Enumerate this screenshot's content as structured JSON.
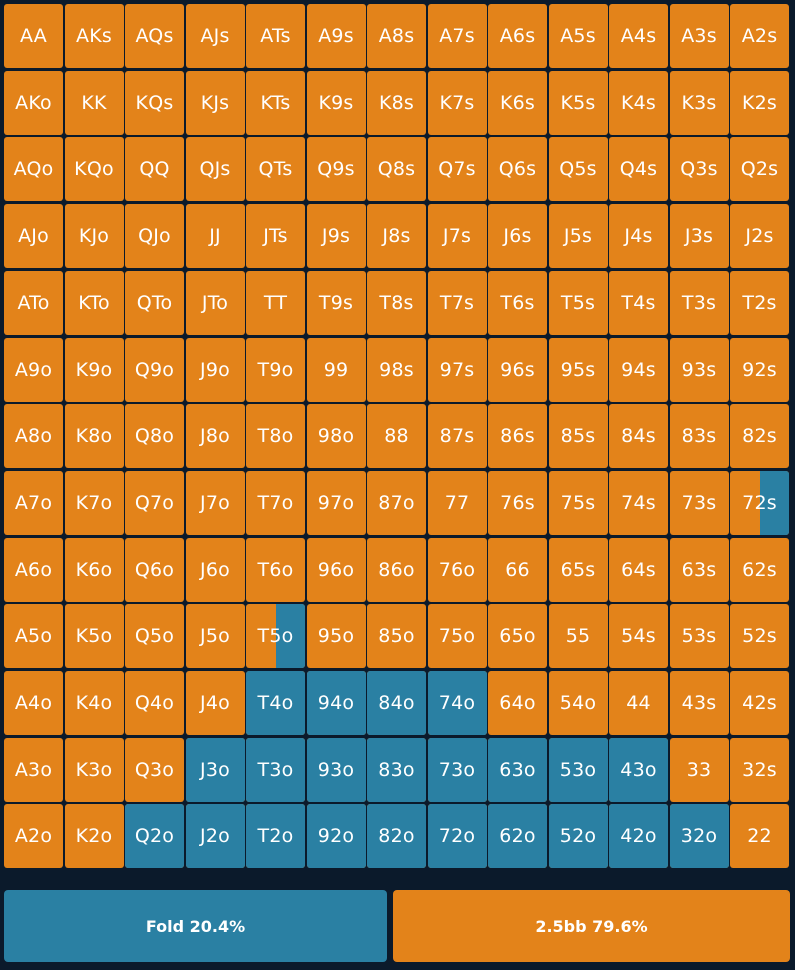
{
  "colors": {
    "background": "#0b1a2b",
    "fold": "#2a80a3",
    "raise": "#e3831a",
    "text": "#ffffff"
  },
  "grid": {
    "ranks": [
      "A",
      "K",
      "Q",
      "J",
      "T",
      "9",
      "8",
      "7",
      "6",
      "5",
      "4",
      "3",
      "2"
    ],
    "rows": [
      [
        "AA",
        "AKs",
        "AQs",
        "AJs",
        "ATs",
        "A9s",
        "A8s",
        "A7s",
        "A6s",
        "A5s",
        "A4s",
        "A3s",
        "A2s"
      ],
      [
        "AKo",
        "KK",
        "KQs",
        "KJs",
        "KTs",
        "K9s",
        "K8s",
        "K7s",
        "K6s",
        "K5s",
        "K4s",
        "K3s",
        "K2s"
      ],
      [
        "AQo",
        "KQo",
        "QQ",
        "QJs",
        "QTs",
        "Q9s",
        "Q8s",
        "Q7s",
        "Q6s",
        "Q5s",
        "Q4s",
        "Q3s",
        "Q2s"
      ],
      [
        "AJo",
        "KJo",
        "QJo",
        "JJ",
        "JTs",
        "J9s",
        "J8s",
        "J7s",
        "J6s",
        "J5s",
        "J4s",
        "J3s",
        "J2s"
      ],
      [
        "ATo",
        "KTo",
        "QTo",
        "JTo",
        "TT",
        "T9s",
        "T8s",
        "T7s",
        "T6s",
        "T5s",
        "T4s",
        "T3s",
        "T2s"
      ],
      [
        "A9o",
        "K9o",
        "Q9o",
        "J9o",
        "T9o",
        "99",
        "98s",
        "97s",
        "96s",
        "95s",
        "94s",
        "93s",
        "92s"
      ],
      [
        "A8o",
        "K8o",
        "Q8o",
        "J8o",
        "T8o",
        "98o",
        "88",
        "87s",
        "86s",
        "85s",
        "84s",
        "83s",
        "82s"
      ],
      [
        "A7o",
        "K7o",
        "Q7o",
        "J7o",
        "T7o",
        "97o",
        "87o",
        "77",
        "76s",
        "75s",
        "74s",
        "73s",
        "72s"
      ],
      [
        "A6o",
        "K6o",
        "Q6o",
        "J6o",
        "T6o",
        "96o",
        "86o",
        "76o",
        "66",
        "65s",
        "64s",
        "63s",
        "62s"
      ],
      [
        "A5o",
        "K5o",
        "Q5o",
        "J5o",
        "T5o",
        "95o",
        "85o",
        "75o",
        "65o",
        "55",
        "54s",
        "53s",
        "52s"
      ],
      [
        "A4o",
        "K4o",
        "Q4o",
        "J4o",
        "T4o",
        "94o",
        "84o",
        "74o",
        "64o",
        "54o",
        "44",
        "43s",
        "42s"
      ],
      [
        "A3o",
        "K3o",
        "Q3o",
        "J3o",
        "T3o",
        "93o",
        "83o",
        "73o",
        "63o",
        "53o",
        "43o",
        "33",
        "32s"
      ],
      [
        "A2o",
        "K2o",
        "Q2o",
        "J2o",
        "T2o",
        "92o",
        "82o",
        "72o",
        "62o",
        "52o",
        "42o",
        "32o",
        "22"
      ]
    ],
    "fold_fraction": [
      [
        0,
        0,
        0,
        0,
        0,
        0,
        0,
        0,
        0,
        0,
        0,
        0,
        0
      ],
      [
        0,
        0,
        0,
        0,
        0,
        0,
        0,
        0,
        0,
        0,
        0,
        0,
        0
      ],
      [
        0,
        0,
        0,
        0,
        0,
        0,
        0,
        0,
        0,
        0,
        0,
        0,
        0
      ],
      [
        0,
        0,
        0,
        0,
        0,
        0,
        0,
        0,
        0,
        0,
        0,
        0,
        0
      ],
      [
        0,
        0,
        0,
        0,
        0,
        0,
        0,
        0,
        0,
        0,
        0,
        0,
        0
      ],
      [
        0,
        0,
        0,
        0,
        0,
        0,
        0,
        0,
        0,
        0,
        0,
        0,
        0
      ],
      [
        0,
        0,
        0,
        0,
        0,
        0,
        0,
        0,
        0,
        0,
        0,
        0,
        0
      ],
      [
        0,
        0,
        0,
        0,
        0,
        0,
        0,
        0,
        0,
        0,
        0,
        0,
        0.5
      ],
      [
        0,
        0,
        0,
        0,
        0,
        0,
        0,
        0,
        0,
        0,
        0,
        0,
        0
      ],
      [
        0,
        0,
        0,
        0,
        0.5,
        0,
        0,
        0,
        0,
        0,
        0,
        0,
        0
      ],
      [
        0,
        0,
        0,
        0,
        1,
        1,
        1,
        1,
        0,
        0,
        0,
        0,
        0
      ],
      [
        0,
        0,
        0,
        1,
        1,
        1,
        1,
        1,
        1,
        1,
        1,
        0,
        0
      ],
      [
        0,
        0,
        1,
        1,
        1,
        1,
        1,
        1,
        1,
        1,
        1,
        1,
        0
      ]
    ]
  },
  "legend": {
    "fold_label": "Fold 20.4%",
    "raise_label": "2.5bb 79.6%"
  }
}
